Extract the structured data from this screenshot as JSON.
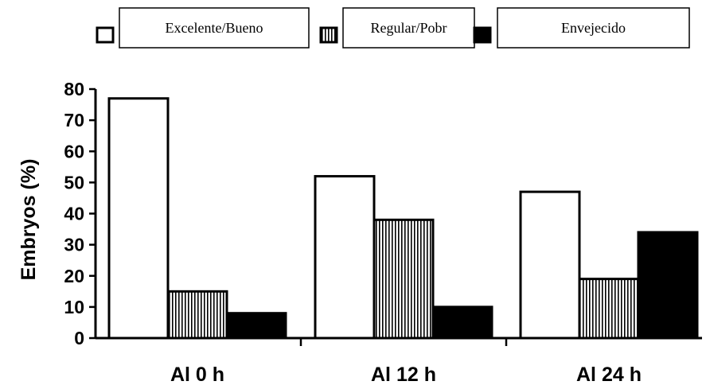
{
  "chart_data": {
    "type": "bar",
    "categories": [
      "Al 0 h",
      "Al 12 h",
      "Al 24 h"
    ],
    "series": [
      {
        "name": "Excelente/Bueno",
        "values": [
          77,
          52,
          47
        ],
        "fill": "#ffffff",
        "pattern": "none"
      },
      {
        "name": "Regular/Pobr",
        "values": [
          15,
          38,
          19
        ],
        "fill": "#ffffff",
        "pattern": "vertical-stripes"
      },
      {
        "name": "Envejecido",
        "values": [
          8,
          10,
          34
        ],
        "fill": "#000000",
        "pattern": "solid"
      }
    ],
    "ylabel": "Embryos (%)",
    "xlabel": "",
    "ylim": [
      0,
      80
    ],
    "yticks": [
      0,
      10,
      20,
      30,
      40,
      50,
      60,
      70,
      80
    ],
    "grid": false,
    "legend": "top"
  }
}
